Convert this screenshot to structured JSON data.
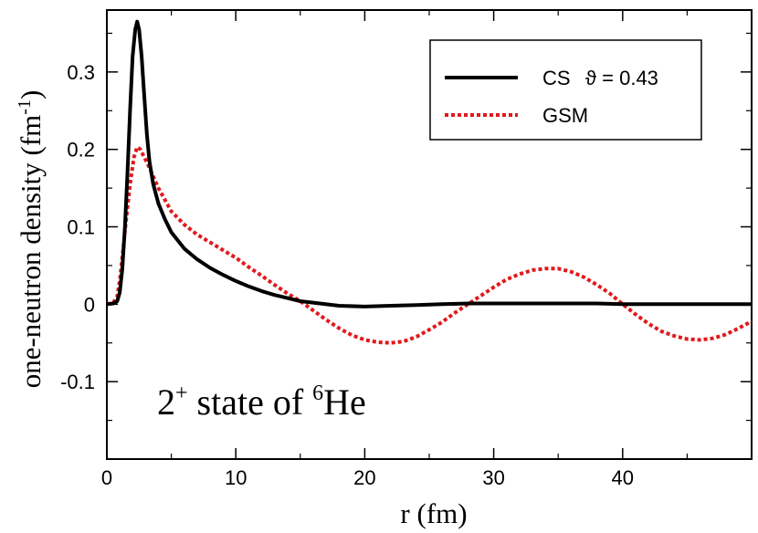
{
  "chart_data": {
    "type": "line",
    "title": "",
    "xlabel": "r (fm)",
    "ylabel_main": "one-neutron density (fm",
    "ylabel_sup": "-1",
    "ylabel_close": ")",
    "xlim": [
      0,
      50
    ],
    "ylim": [
      -0.2,
      0.38
    ],
    "x_ticks": [
      0,
      10,
      20,
      30,
      40
    ],
    "x_tick_labels": [
      "0",
      "10",
      "20",
      "30",
      "40"
    ],
    "y_ticks": [
      -0.1,
      0,
      0.1,
      0.2,
      0.3
    ],
    "y_tick_labels": [
      "-0.1",
      "0",
      "0.1",
      "0.2",
      "0.3"
    ],
    "grid": false,
    "legend_position": "top-right",
    "series": [
      {
        "name": "CS",
        "extra": "ϑ =  0.43",
        "color": "#000000",
        "style": "solid",
        "points": [
          [
            0,
            0
          ],
          [
            0.5,
            0.001
          ],
          [
            0.8,
            0.004
          ],
          [
            1.0,
            0.015
          ],
          [
            1.2,
            0.045
          ],
          [
            1.4,
            0.1
          ],
          [
            1.6,
            0.17
          ],
          [
            1.8,
            0.25
          ],
          [
            2.0,
            0.32
          ],
          [
            2.2,
            0.355
          ],
          [
            2.35,
            0.365
          ],
          [
            2.5,
            0.355
          ],
          [
            2.7,
            0.32
          ],
          [
            2.9,
            0.27
          ],
          [
            3.1,
            0.22
          ],
          [
            3.3,
            0.185
          ],
          [
            3.6,
            0.155
          ],
          [
            4.0,
            0.13
          ],
          [
            4.5,
            0.11
          ],
          [
            5,
            0.093
          ],
          [
            6,
            0.072
          ],
          [
            7,
            0.058
          ],
          [
            8,
            0.047
          ],
          [
            9,
            0.038
          ],
          [
            10,
            0.03
          ],
          [
            11,
            0.023
          ],
          [
            12,
            0.017
          ],
          [
            13,
            0.012
          ],
          [
            14,
            0.008
          ],
          [
            15,
            0.004
          ],
          [
            16,
            0.002
          ],
          [
            18,
            -0.002
          ],
          [
            20,
            -0.003
          ],
          [
            22,
            -0.002
          ],
          [
            24,
            -0.001
          ],
          [
            26,
            0.0
          ],
          [
            28,
            0.001
          ],
          [
            30,
            0.001
          ],
          [
            32,
            0.001
          ],
          [
            34,
            0.001
          ],
          [
            36,
            0.001
          ],
          [
            38,
            0.001
          ],
          [
            40,
            0.0
          ],
          [
            42,
            0.0
          ],
          [
            44,
            0.0
          ],
          [
            46,
            0.0
          ],
          [
            48,
            0.0
          ],
          [
            50,
            0.0
          ]
        ]
      },
      {
        "name": "GSM",
        "color": "#e0191d",
        "style": "dotted",
        "points": [
          [
            0,
            0
          ],
          [
            0.5,
            0.002
          ],
          [
            0.8,
            0.01
          ],
          [
            1.0,
            0.03
          ],
          [
            1.2,
            0.06
          ],
          [
            1.5,
            0.11
          ],
          [
            1.8,
            0.155
          ],
          [
            2.1,
            0.19
          ],
          [
            2.35,
            0.203
          ],
          [
            2.6,
            0.2
          ],
          [
            2.9,
            0.19
          ],
          [
            3.2,
            0.18
          ],
          [
            3.6,
            0.165
          ],
          [
            4,
            0.15
          ],
          [
            4.5,
            0.135
          ],
          [
            5,
            0.12
          ],
          [
            6,
            0.103
          ],
          [
            7,
            0.09
          ],
          [
            8,
            0.08
          ],
          [
            9,
            0.07
          ],
          [
            10,
            0.06
          ],
          [
            11,
            0.048
          ],
          [
            12,
            0.037
          ],
          [
            13,
            0.025
          ],
          [
            14,
            0.014
          ],
          [
            15,
            0.004
          ],
          [
            16,
            -0.008
          ],
          [
            17,
            -0.02
          ],
          [
            18,
            -0.031
          ],
          [
            19,
            -0.04
          ],
          [
            20,
            -0.046
          ],
          [
            21,
            -0.049
          ],
          [
            22,
            -0.05
          ],
          [
            23,
            -0.048
          ],
          [
            24,
            -0.042
          ],
          [
            25,
            -0.033
          ],
          [
            26,
            -0.023
          ],
          [
            27,
            -0.011
          ],
          [
            28,
            0.0
          ],
          [
            29,
            0.011
          ],
          [
            30,
            0.022
          ],
          [
            31,
            0.032
          ],
          [
            32,
            0.039
          ],
          [
            33,
            0.044
          ],
          [
            34,
            0.046
          ],
          [
            35,
            0.046
          ],
          [
            36,
            0.042
          ],
          [
            37,
            0.035
          ],
          [
            38,
            0.025
          ],
          [
            39,
            0.014
          ],
          [
            40,
            0.0
          ],
          [
            41,
            -0.013
          ],
          [
            42,
            -0.025
          ],
          [
            43,
            -0.035
          ],
          [
            44,
            -0.041
          ],
          [
            45,
            -0.045
          ],
          [
            46,
            -0.046
          ],
          [
            47,
            -0.044
          ],
          [
            48,
            -0.039
          ],
          [
            49,
            -0.031
          ],
          [
            50,
            -0.022
          ]
        ]
      }
    ],
    "annotation": {
      "parts": [
        "2",
        "+",
        " state of ",
        "6",
        "He"
      ]
    }
  }
}
